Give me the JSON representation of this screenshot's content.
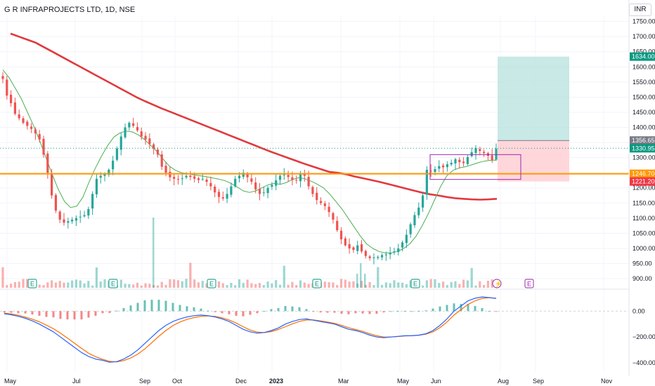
{
  "header": {
    "title": "G R INFRAPROJECTS LTD, 1D, NSE",
    "currency": "INR"
  },
  "colors": {
    "up": "#26a69a",
    "down": "#ef5350",
    "ma_long": "#e03a3e",
    "ma_short": "#4caf50",
    "support": "#ff9800",
    "target_zone": "#b2dfdb",
    "stop_zone": "#ffcdd2",
    "box": "#9c27b0",
    "macd_line": "#2962ff",
    "signal_line": "#ff6d00"
  },
  "chart_data": {
    "type": "candlestick",
    "price_axis": {
      "ticks": [
        "1750.00",
        "1700.00",
        "1650.00",
        "1600.00",
        "1550.00",
        "1500.00",
        "1450.00",
        "1400.00",
        "1350.00",
        "1300.00",
        "1250.00",
        "1200.00",
        "1150.00",
        "1100.00",
        "1050.00",
        "1000.00",
        "950.00",
        "900.00"
      ],
      "range": [
        870,
        1770
      ]
    },
    "time_axis": {
      "labels": [
        "May",
        "Jul",
        "Sep",
        "Oct",
        "Dec",
        "2023",
        "Mar",
        "May",
        "Jun",
        "Aug",
        "Sep",
        "Nov"
      ],
      "bold_label": "2023"
    },
    "price_tags": [
      {
        "label": "1634.00",
        "value": 1634,
        "color": "#089981"
      },
      {
        "label": "1356.65",
        "value": 1356.65,
        "color": "#787b86"
      },
      {
        "label": "1330.95",
        "value": 1330.95,
        "color": "#089981"
      },
      {
        "label": "1246.70",
        "value": 1246.7,
        "color": "#ff9800"
      },
      {
        "label": "1221.20",
        "value": 1221.2,
        "color": "#f23645"
      }
    ],
    "support_level": 1246.7,
    "trade_setup": {
      "entry": 1356.65,
      "target": 1634.0,
      "stop": 1221.2
    },
    "consolidation_box": {
      "top": 1310,
      "bottom": 1228
    },
    "events": [
      {
        "label": "E",
        "type": "earnings",
        "position": "Jun"
      },
      {
        "label": "E",
        "type": "earnings",
        "position": "Aug"
      },
      {
        "label": "E",
        "type": "earnings",
        "position": "Nov"
      },
      {
        "label": "E",
        "type": "earnings",
        "position": "Feb"
      },
      {
        "label": "E",
        "type": "earnings",
        "position": "May"
      },
      {
        "label": "⚡",
        "type": "split",
        "position": "Aug"
      },
      {
        "label": "E",
        "type": "earnings-upcoming",
        "position": "Aug"
      }
    ],
    "closes": [
      1560,
      1505,
      1480,
      1445,
      1430,
      1415,
      1405,
      1395,
      1380,
      1360,
      1310,
      1250,
      1175,
      1125,
      1095,
      1085,
      1090,
      1095,
      1100,
      1105,
      1110,
      1130,
      1180,
      1230,
      1240,
      1245,
      1260,
      1290,
      1330,
      1370,
      1400,
      1415,
      1405,
      1390,
      1370,
      1360,
      1345,
      1330,
      1310,
      1270,
      1250,
      1235,
      1230,
      1228,
      1232,
      1240,
      1236,
      1230,
      1226,
      1230,
      1220,
      1205,
      1185,
      1170,
      1165,
      1180,
      1205,
      1230,
      1240,
      1250,
      1235,
      1220,
      1195,
      1180,
      1185,
      1200,
      1210,
      1225,
      1240,
      1244,
      1236,
      1226,
      1225,
      1245,
      1240,
      1205,
      1180,
      1160,
      1150,
      1140,
      1120,
      1095,
      1060,
      1030,
      1010,
      1000,
      995,
      1010,
      990,
      975,
      968,
      970,
      972,
      978,
      980,
      985,
      990,
      1000,
      1020,
      1045,
      1080,
      1110,
      1135,
      1175,
      1260,
      1255,
      1262,
      1272,
      1268,
      1278,
      1283,
      1295,
      1285,
      1282,
      1302,
      1318,
      1332,
      1322,
      1315,
      1306,
      1292,
      1330
    ],
    "ma_long": [
      1710,
      1700,
      1690,
      1680,
      1665,
      1650,
      1635,
      1620,
      1605,
      1590,
      1575,
      1560,
      1545,
      1530,
      1515,
      1500,
      1487,
      1475,
      1463,
      1452,
      1441,
      1430,
      1419,
      1408,
      1397,
      1386,
      1375,
      1364,
      1353,
      1342,
      1331,
      1320,
      1310,
      1300,
      1290,
      1280,
      1271,
      1262,
      1253,
      1250,
      1245,
      1238,
      1232,
      1226,
      1220,
      1213,
      1206,
      1199,
      1192,
      1185,
      1179,
      1175,
      1170,
      1166,
      1164,
      1162,
      1161,
      1162,
      1164
    ],
    "ma_short": [
      1590,
      1565,
      1530,
      1495,
      1450,
      1405,
      1355,
      1300,
      1245,
      1195,
      1155,
      1135,
      1140,
      1170,
      1220,
      1265,
      1305,
      1340,
      1368,
      1382,
      1388,
      1385,
      1375,
      1360,
      1340,
      1320,
      1295,
      1272,
      1258,
      1250,
      1247,
      1243,
      1240,
      1237,
      1233,
      1229,
      1224,
      1215,
      1203,
      1190,
      1185,
      1190,
      1200,
      1210,
      1215,
      1212,
      1218,
      1228,
      1234,
      1230,
      1222,
      1212,
      1200,
      1180,
      1155,
      1130,
      1100,
      1070,
      1040,
      1015,
      1000,
      990,
      985,
      985,
      990,
      1000,
      1015,
      1040,
      1075,
      1115,
      1160,
      1205,
      1240,
      1258,
      1266,
      1270,
      1276,
      1283,
      1288,
      1291,
      1292
    ],
    "macd": [
      -20,
      -28,
      -40,
      -55,
      -75,
      -100,
      -130,
      -160,
      -200,
      -240,
      -280,
      -320,
      -350,
      -370,
      -380,
      -395,
      -390,
      -370,
      -340,
      -300,
      -250,
      -200,
      -150,
      -110,
      -80,
      -60,
      -45,
      -35,
      -30,
      -35,
      -45,
      -60,
      -80,
      -110,
      -140,
      -160,
      -170,
      -165,
      -150,
      -130,
      -100,
      -80,
      -65,
      -60,
      -70,
      -80,
      -90,
      -100,
      -120,
      -140,
      -150,
      -165,
      -185,
      -200,
      -205,
      -200,
      -195,
      -190,
      -190,
      -185,
      -175,
      -150,
      -110,
      -60,
      0,
      40,
      80,
      100,
      110,
      105,
      98
    ],
    "signal": [
      -15,
      -22,
      -32,
      -46,
      -62,
      -82,
      -108,
      -136,
      -170,
      -208,
      -248,
      -288,
      -325,
      -352,
      -372,
      -388,
      -392,
      -382,
      -362,
      -332,
      -292,
      -244,
      -194,
      -150,
      -112,
      -84,
      -64,
      -50,
      -40,
      -37,
      -41,
      -52,
      -68,
      -92,
      -120,
      -146,
      -162,
      -166,
      -158,
      -142,
      -120,
      -98,
      -80,
      -68,
      -68,
      -75,
      -84,
      -94,
      -110,
      -128,
      -142,
      -156,
      -174,
      -190,
      -200,
      -200,
      -196,
      -191,
      -190,
      -186,
      -178,
      -160,
      -128,
      -84,
      -30,
      12,
      52,
      80,
      98,
      104,
      100
    ],
    "macd_axis": {
      "ticks": [
        "0.00",
        "−200.00",
        "−400.00"
      ],
      "range": [
        -470,
        170
      ]
    }
  }
}
